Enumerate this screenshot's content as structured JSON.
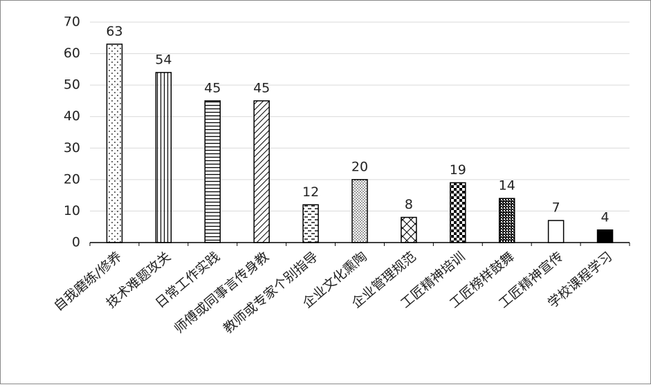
{
  "chart_data": {
    "type": "bar",
    "categories": [
      "自我磨练/修养",
      "技术难题攻关",
      "日常工作实践",
      "师傅或同事言传身教",
      "教师或专家个别指导",
      "企业文化熏陶",
      "企业管理规范",
      "工匠精神培训",
      "工匠榜样鼓舞",
      "工匠精神宣传",
      "学校课程学习"
    ],
    "values": [
      63,
      54,
      45,
      45,
      12,
      20,
      8,
      19,
      14,
      7,
      4
    ],
    "color": "#000000",
    "ylim": [
      0,
      70
    ],
    "yticks": [
      0,
      10,
      20,
      30,
      40,
      50,
      60,
      70
    ],
    "grid": true
  }
}
